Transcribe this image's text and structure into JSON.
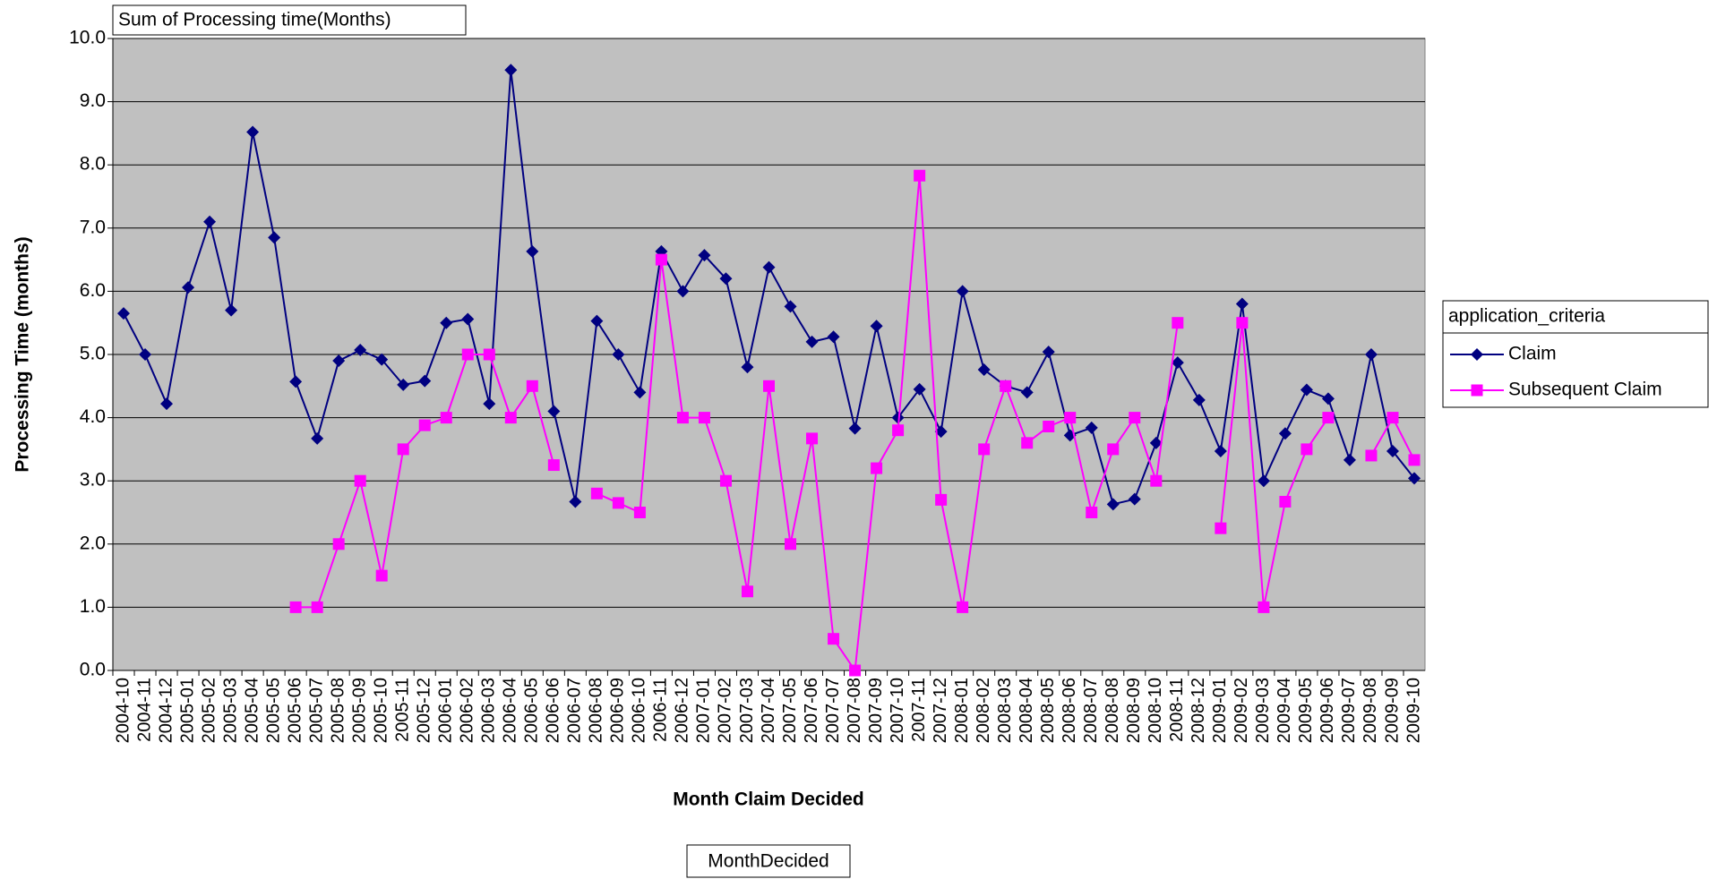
{
  "chart_data": {
    "type": "line",
    "title": "Sum of Processing time(Months)",
    "annotation": "MonthDecided",
    "legend_title": "application_criteria",
    "xlabel": "Month Claim Decided",
    "ylabel": "Processing Time (months)",
    "categories": [
      "2004-10",
      "2004-11",
      "2004-12",
      "2005-01",
      "2005-02",
      "2005-03",
      "2005-04",
      "2005-05",
      "2005-06",
      "2005-07",
      "2005-08",
      "2005-09",
      "2005-10",
      "2005-11",
      "2005-12",
      "2006-01",
      "2006-02",
      "2006-03",
      "2006-04",
      "2006-05",
      "2006-06",
      "2006-07",
      "2006-08",
      "2006-09",
      "2006-10",
      "2006-11",
      "2006-12",
      "2007-01",
      "2007-02",
      "2007-03",
      "2007-04",
      "2007-05",
      "2007-06",
      "2007-07",
      "2007-08",
      "2007-09",
      "2007-10",
      "2007-11",
      "2007-12",
      "2008-01",
      "2008-02",
      "2008-03",
      "2008-04",
      "2008-05",
      "2008-06",
      "2008-07",
      "2008-08",
      "2008-09",
      "2008-10",
      "2008-11",
      "2008-12",
      "2009-01",
      "2009-02",
      "2009-03",
      "2009-04",
      "2009-05",
      "2009-06",
      "2009-07",
      "2009-08",
      "2009-09",
      "2009-10"
    ],
    "series": [
      {
        "name": "Claim",
        "color": "#000080",
        "marker": "diamond",
        "values": [
          5.65,
          5.0,
          4.22,
          6.06,
          7.1,
          5.7,
          8.52,
          6.85,
          4.57,
          3.67,
          4.9,
          5.07,
          4.92,
          4.52,
          4.58,
          5.5,
          5.56,
          4.22,
          9.5,
          6.63,
          4.1,
          2.67,
          5.53,
          5.0,
          4.4,
          6.63,
          6.0,
          6.57,
          6.2,
          4.8,
          6.38,
          5.76,
          5.2,
          5.28,
          3.83,
          5.45,
          4.0,
          4.45,
          3.78,
          6.0,
          4.76,
          4.5,
          4.4,
          5.04,
          3.72,
          3.84,
          2.63,
          2.71,
          3.6,
          4.87,
          4.28,
          3.47,
          5.8,
          3.0,
          3.75,
          4.44,
          4.3,
          3.33,
          5.0,
          3.47,
          3.04
        ]
      },
      {
        "name": "Subsequent Claim",
        "color": "#ff00ff",
        "marker": "square",
        "values": [
          null,
          null,
          null,
          null,
          null,
          null,
          null,
          null,
          1.0,
          1.0,
          2.0,
          3.0,
          1.5,
          3.5,
          3.88,
          4.0,
          5.0,
          5.0,
          4.0,
          4.5,
          3.25,
          null,
          2.8,
          2.65,
          2.5,
          6.5,
          4.0,
          4.0,
          3.0,
          1.25,
          4.5,
          2.0,
          3.67,
          0.5,
          0.0,
          3.2,
          3.8,
          7.83,
          2.7,
          1.0,
          3.5,
          4.5,
          3.6,
          3.86,
          4.0,
          2.5,
          3.5,
          4.0,
          3.0,
          5.5,
          null,
          2.25,
          5.5,
          1.0,
          2.67,
          3.5,
          4.0,
          null,
          3.4,
          4.0,
          3.33
        ]
      }
    ],
    "ylim": [
      0,
      10
    ],
    "yticks": [
      {
        "value": 0,
        "label": "0.0"
      },
      {
        "value": 1,
        "label": "1.0"
      },
      {
        "value": 2,
        "label": "2.0"
      },
      {
        "value": 3,
        "label": "3.0"
      },
      {
        "value": 4,
        "label": "4.0"
      },
      {
        "value": 5,
        "label": "5.0"
      },
      {
        "value": 6,
        "label": "6.0"
      },
      {
        "value": 7,
        "label": "7.0"
      },
      {
        "value": 8,
        "label": "8.0"
      },
      {
        "value": 9,
        "label": "9.0"
      },
      {
        "value": 10,
        "label": "10.0"
      }
    ],
    "grid": true,
    "plot_background": "#c0c0c0",
    "legend": "right"
  }
}
